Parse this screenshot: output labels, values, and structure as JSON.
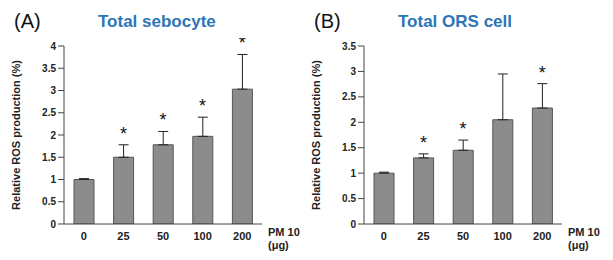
{
  "chart_data": [
    {
      "type": "bar",
      "panel": "(A)",
      "title": "Total sebocyte",
      "y_label": "Relative ROS production (%)",
      "x_label": [
        "PM 10",
        "(μg)"
      ],
      "categories": [
        "0",
        "25",
        "50",
        "100",
        "200"
      ],
      "values": [
        1,
        1.5,
        1.78,
        1.97,
        3.03
      ],
      "errors": [
        0.02,
        0.28,
        0.3,
        0.43,
        0.78
      ],
      "significance": [
        null,
        "*",
        "*",
        "*",
        "*"
      ],
      "color": "#8c8c8c",
      "ylim": [
        0,
        4
      ],
      "yticks": [
        0,
        0.5,
        1,
        1.5,
        2,
        2.5,
        3,
        3.5,
        4
      ],
      "grid": false
    },
    {
      "type": "bar",
      "panel": "(B)",
      "title": "Total ORS cell",
      "y_label": "Relative ROS production (%)",
      "x_label": [
        "PM 10",
        "(μg)"
      ],
      "categories": [
        "0",
        "25",
        "50",
        "100",
        "200"
      ],
      "values": [
        1,
        1.3,
        1.45,
        2.05,
        2.28
      ],
      "errors": [
        0.02,
        0.08,
        0.2,
        0.9,
        0.48
      ],
      "significance": [
        null,
        "*",
        "*",
        null,
        "*"
      ],
      "color": "#8c8c8c",
      "ylim": [
        0,
        3.5
      ],
      "yticks": [
        0,
        0.5,
        1,
        1.5,
        2,
        2.5,
        3,
        3.5
      ],
      "grid": false
    }
  ]
}
